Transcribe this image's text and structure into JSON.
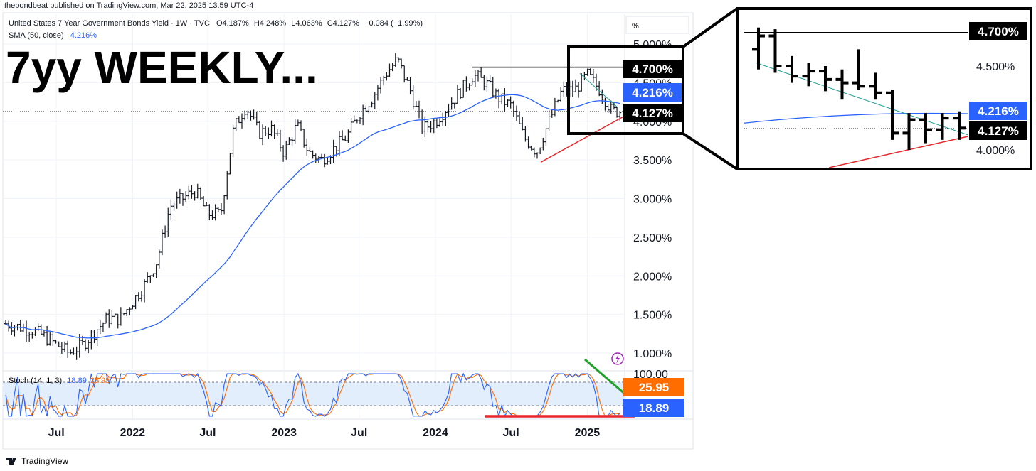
{
  "meta": {
    "publisher_line": "thebondbeat published on TradingView.com, Mar 22, 2025 13:59 UTC-4",
    "footer_brand": "TradingView"
  },
  "chart_data": {
    "type": "ohlc",
    "title": "United States 7 Year Government Bonds Yield · 1W · TVC",
    "overlay_title": "7yy WEEKLY...",
    "ohlc_text": {
      "o": "O4.187%",
      "h": "H4.248%",
      "l": "L4.063%",
      "c": "C4.127%",
      "chg": "−0.084 (−1.99%)"
    },
    "sma": {
      "label": "SMA (50, close)",
      "value": "4.216%"
    },
    "y_axis": {
      "unit": "%",
      "ylim": [
        0.75,
        5.3
      ],
      "ticks": [
        "5.000%",
        "4.500%",
        "4.000%",
        "3.500%",
        "3.000%",
        "2.500%",
        "2.000%",
        "1.500%",
        "1.000%"
      ],
      "tick_values": [
        5.0,
        4.5,
        4.0,
        3.5,
        3.0,
        2.5,
        2.0,
        1.5,
        1.0
      ]
    },
    "x_axis": {
      "labels": [
        "Jul",
        "2022",
        "Jul",
        "2023",
        "Jul",
        "2024",
        "Jul",
        "2025"
      ],
      "label_dates": [
        "2021-07",
        "2022-01",
        "2022-07",
        "2023-01",
        "2023-07",
        "2024-01",
        "2024-07",
        "2025-01"
      ]
    },
    "series_close_weekly_by_date": {
      "x": [
        "2021-03",
        "2021-05",
        "2021-06",
        "2021-08",
        "2021-09",
        "2021-11",
        "2021-12",
        "2022-02",
        "2022-03",
        "2022-04",
        "2022-05",
        "2022-06",
        "2022-07",
        "2022-08",
        "2022-09",
        "2022-10",
        "2022-11",
        "2022-12",
        "2023-01",
        "2023-02",
        "2023-03",
        "2023-04",
        "2023-06",
        "2023-07",
        "2023-08",
        "2023-09",
        "2023-10",
        "2023-11",
        "2023-12",
        "2024-01",
        "2024-02",
        "2024-04",
        "2024-05",
        "2024-06",
        "2024-07",
        "2024-08",
        "2024-09",
        "2024-10",
        "2024-11",
        "2024-12",
        "2025-01",
        "2025-02",
        "2025-03"
      ],
      "close": [
        1.38,
        1.3,
        1.22,
        1.0,
        1.1,
        1.45,
        1.44,
        1.9,
        2.2,
        2.9,
        3.0,
        3.1,
        2.8,
        2.8,
        3.9,
        4.2,
        3.85,
        3.9,
        3.6,
        3.95,
        3.6,
        3.5,
        3.8,
        4.1,
        4.3,
        4.6,
        4.8,
        4.4,
        3.9,
        4.0,
        4.2,
        4.6,
        4.5,
        4.3,
        4.2,
        3.8,
        3.6,
        4.0,
        4.4,
        4.4,
        4.6,
        4.4,
        4.13
      ]
    },
    "key_levels": {
      "resistance": "4.700%",
      "sma50": "4.216%",
      "last": "4.127%"
    },
    "levels_numeric": {
      "resistance": 4.7,
      "sma50": 4.216,
      "last": 4.127
    },
    "stoch": {
      "label": "Stoch (14, 1, 3)",
      "k": "18.89",
      "d": "25.95",
      "top": "100.00"
    },
    "inset": {
      "ticks": [
        "4.500%",
        "4.000%"
      ],
      "badges": [
        "4.700%",
        "4.216%",
        "4.127%"
      ]
    },
    "colors": {
      "sma": "#2962ff",
      "stoch_k": "#2962ff",
      "stoch_d": "#ff6d00",
      "trend": "#e8262b",
      "green": "#1fa12a",
      "bars": "#131722"
    }
  }
}
